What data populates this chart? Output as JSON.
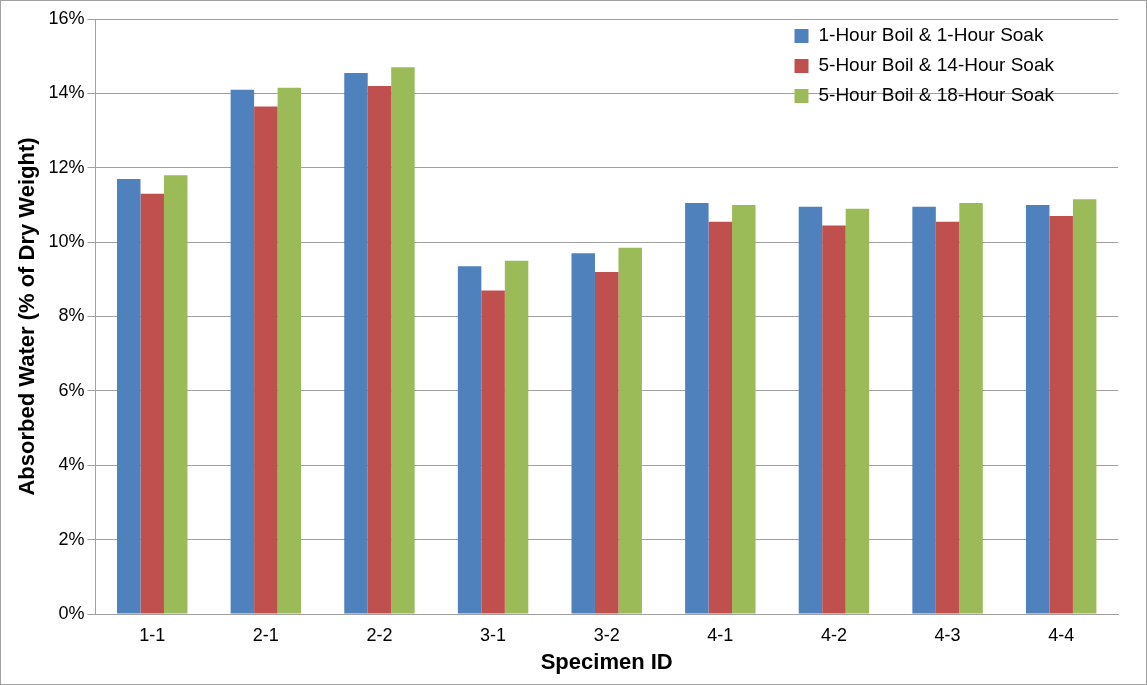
{
  "chart_data": {
    "type": "bar",
    "xlabel": "Specimen ID",
    "ylabel": "Absorbed Water (% of Dry Weight)",
    "categories": [
      "1-1",
      "2-1",
      "2-2",
      "3-1",
      "3-2",
      "4-1",
      "4-2",
      "4-3",
      "4-4"
    ],
    "series": [
      {
        "name": "1-Hour Boil & 1-Hour Soak",
        "color": "#4f81bd",
        "values": [
          11.7,
          14.1,
          14.55,
          9.35,
          9.7,
          11.05,
          10.95,
          10.95,
          11.0
        ]
      },
      {
        "name": "5-Hour Boil & 14-Hour Soak",
        "color": "#c0504d",
        "values": [
          11.3,
          13.65,
          14.2,
          8.7,
          9.2,
          10.55,
          10.45,
          10.55,
          10.7
        ]
      },
      {
        "name": "5-Hour Boil & 18-Hour Soak",
        "color": "#9bbb59",
        "values": [
          11.8,
          14.15,
          14.7,
          9.5,
          9.85,
          11.0,
          10.9,
          11.05,
          11.15
        ]
      }
    ],
    "ylim": [
      0,
      16
    ],
    "yticks": [
      {
        "value": 0,
        "label": "0%"
      },
      {
        "value": 2,
        "label": "2%"
      },
      {
        "value": 4,
        "label": "4%"
      },
      {
        "value": 6,
        "label": "6%"
      },
      {
        "value": 8,
        "label": "8%"
      },
      {
        "value": 10,
        "label": "10%"
      },
      {
        "value": 12,
        "label": "12%"
      },
      {
        "value": 14,
        "label": "14%"
      },
      {
        "value": 16,
        "label": "16%"
      }
    ],
    "grid": "y",
    "legend": "top right"
  }
}
